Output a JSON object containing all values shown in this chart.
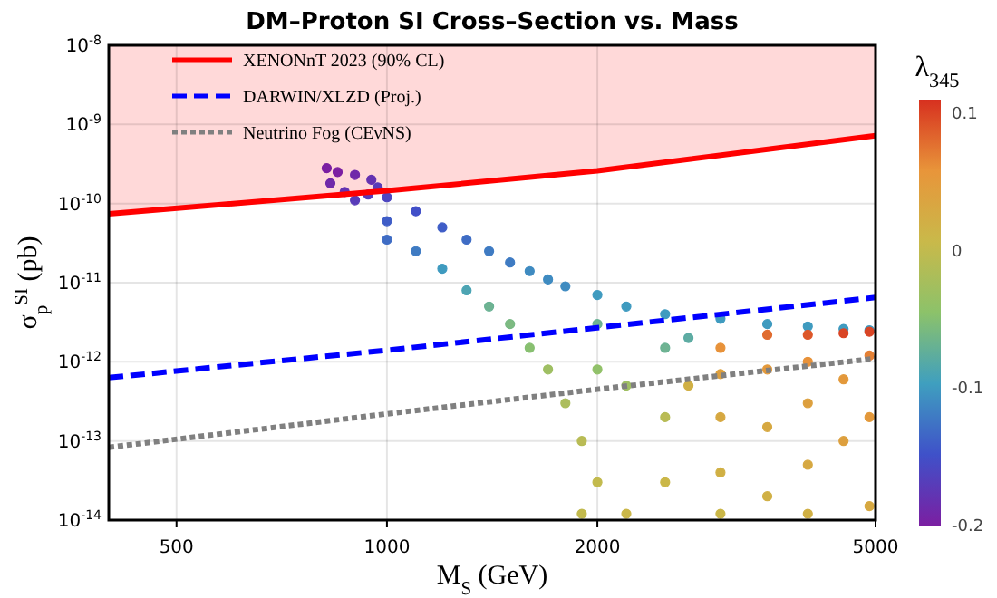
{
  "chart_data": {
    "type": "scatter",
    "title": "DM–Proton SI Cross–Section vs. Mass",
    "xlabel": "M$_{S}$ (GeV)",
    "ylabel": "σ$_{p}$$^{SI}$ (pb)",
    "clabel": "λ$_{345}$",
    "log": "xy",
    "grid": true,
    "legend": "top left",
    "xlim": [
      400,
      5000
    ],
    "xticks": [
      500,
      1000,
      2000,
      5000
    ],
    "ylim": [
      1e-14,
      1e-08
    ],
    "yticks": [
      {
        "value": 1e-14,
        "label": "10$^{-14}$"
      },
      {
        "value": 1e-13,
        "label": "10$^{-13}$"
      },
      {
        "value": 1e-12,
        "label": "10$^{-12}$"
      },
      {
        "value": 1e-11,
        "label": "10$^{-11}$"
      },
      {
        "value": 1e-10,
        "label": "10$^{-10}$"
      },
      {
        "value": 1e-09,
        "label": "10$^{-9}$"
      },
      {
        "value": 1e-08,
        "label": "10$^{-8}$"
      }
    ],
    "clim": [
      -0.2,
      0.11
    ],
    "cticks": [
      -0.2,
      -0.1,
      0,
      0.1
    ],
    "series": [
      {
        "type": "scatter",
        "marker": "circle",
        "colors": [
          "#7b1fa2",
          "#7b1fa2",
          "#7029a9",
          "#6432b1",
          "#583cb9",
          "#7029a9",
          "#6432b1",
          "#583cb9",
          "#583cb9",
          "#4d46c0",
          "#3f5dc7",
          "#3f6cc4",
          "#414fc8",
          "#3f7bc2",
          "#3f5dc7",
          "#3f9bbf",
          "#3f6cc4",
          "#4ea4b2",
          "#3f7bc2",
          "#6fb392",
          "#3f7bc2",
          "#7eba81",
          "#3f8bc0",
          "#89c070",
          "#9fbf64",
          "#3f8bc0",
          "#acbd5d",
          "#3f8bc0",
          "#babb55",
          "#3f9bbf",
          "#6fb392",
          "#91c16b",
          "#c3ba4d",
          "#c3ba4d",
          "#cab748",
          "#3f9bbf",
          "#9fbf64",
          "#3f9bbf",
          "#6fb392",
          "#babb55",
          "#cab748",
          "#3f9bbf",
          "#e8923a",
          "#dd9f3e",
          "#d6a841",
          "#d0b044",
          "#cab748",
          "#3f9bbf",
          "#e06c2f",
          "#e3983b",
          "#d6a841",
          "#d0b044",
          "#3f9bbf",
          "#dc572a",
          "#e8923a",
          "#dd9f3e",
          "#d6a841",
          "#d0b044",
          "#3f9bbf",
          "#d94525",
          "#e3983b",
          "#dd9f3e",
          "#3f9bbf",
          "#d94525",
          "#e48135",
          "#e3983b",
          "#d6a841",
          "#d0b044",
          "#5faca2"
        ],
        "x": [
          820,
          850,
          900,
          950,
          970,
          830,
          870,
          900,
          940,
          1000,
          1000,
          1000,
          1100,
          1100,
          1200,
          1200,
          1300,
          1300,
          1400,
          1400,
          1500,
          1500,
          1600,
          1600,
          1700,
          1700,
          1800,
          1800,
          1900,
          2000,
          2000,
          2000,
          2000,
          1900,
          2200,
          2200,
          2200,
          2500,
          2500,
          2500,
          2500,
          3000,
          3000,
          3000,
          3000,
          3000,
          3000,
          3500,
          3500,
          3500,
          3500,
          3500,
          4000,
          4000,
          4000,
          4000,
          4000,
          4000,
          4500,
          4500,
          4500,
          4500,
          4900,
          4900,
          4900,
          4900,
          4900,
          2700,
          2700
        ],
        "values": [
          2.8e-10,
          2.5e-10,
          2.3e-10,
          2e-10,
          1.6e-10,
          1.8e-10,
          1.4e-10,
          1.1e-10,
          1.3e-10,
          1.2e-10,
          6e-11,
          3.5e-11,
          8e-11,
          2.5e-11,
          5e-11,
          1.5e-11,
          3.5e-11,
          8e-12,
          2.5e-11,
          5e-12,
          1.8e-11,
          3e-12,
          1.4e-11,
          1.5e-12,
          8e-13,
          1.1e-11,
          3e-13,
          9e-12,
          1e-13,
          7e-12,
          3e-12,
          8e-13,
          3e-14,
          1.2e-14,
          1.2e-14,
          5e-12,
          5e-13,
          4e-12,
          1.5e-12,
          2e-13,
          3e-14,
          3.5e-12,
          1.5e-12,
          7e-13,
          2e-13,
          4e-14,
          1.2e-14,
          3e-12,
          2.2e-12,
          8e-13,
          1.5e-13,
          2e-14,
          2.8e-12,
          2.2e-12,
          1e-12,
          3e-13,
          5e-14,
          1.2e-14,
          2.6e-12,
          2.3e-12,
          6e-13,
          1e-13,
          2.5e-12,
          2.4e-12,
          1.2e-12,
          2e-13,
          1.5e-14,
          5e-13,
          2e-12
        ],
        "cvalues": [
          -0.2,
          -0.2,
          -0.19,
          -0.18,
          -0.17,
          -0.19,
          -0.18,
          -0.17,
          -0.17,
          -0.16,
          -0.14,
          -0.13,
          -0.15,
          -0.12,
          -0.14,
          -0.1,
          -0.13,
          -0.09,
          -0.12,
          -0.07,
          -0.12,
          -0.06,
          -0.11,
          -0.05,
          -0.03,
          -0.11,
          -0.02,
          -0.11,
          -0.01,
          -0.1,
          -0.07,
          -0.04,
          0,
          0,
          0.01,
          -0.1,
          -0.03,
          -0.1,
          -0.07,
          -0.01,
          0.01,
          -0.1,
          0.06,
          0.04,
          0.03,
          0.02,
          0.01,
          -0.1,
          0.08,
          0.05,
          0.03,
          0.02,
          -0.1,
          0.09,
          0.06,
          0.04,
          0.03,
          0.02,
          -0.1,
          0.1,
          0.05,
          0.04,
          -0.1,
          0.1,
          0.07,
          0.05,
          0.03,
          0.02,
          -0.08
        ]
      },
      {
        "type": "line",
        "name": "XENONnT 2023 (90% CL)",
        "color": "#ff0000",
        "line_style": "solid",
        "x": [
          400,
          1000,
          2000,
          5000
        ],
        "values": [
          7.4e-11,
          1.45e-10,
          2.6e-10,
          7.2e-10
        ],
        "lower": [
          7.4e-11,
          1.45e-10,
          2.6e-10,
          7.2e-10
        ],
        "upper": [
          1e-08,
          1e-08,
          1e-08,
          1e-08
        ]
      },
      {
        "type": "line",
        "name": "DARWIN/XLZD (Proj.)",
        "color": "#0000ff",
        "line_style": "dashed",
        "x": [
          400,
          1000,
          2000,
          5000
        ],
        "values": [
          6.3e-13,
          1.4e-12,
          2.7e-12,
          6.5e-12
        ]
      },
      {
        "type": "line",
        "name": "Neutrino Fog (CEνNS)",
        "color": "#808080",
        "line_style": "dotted",
        "x": [
          400,
          1000,
          2000,
          5000
        ],
        "values": [
          8.3e-14,
          2.2e-13,
          4.5e-13,
          1.1e-12
        ]
      }
    ]
  }
}
